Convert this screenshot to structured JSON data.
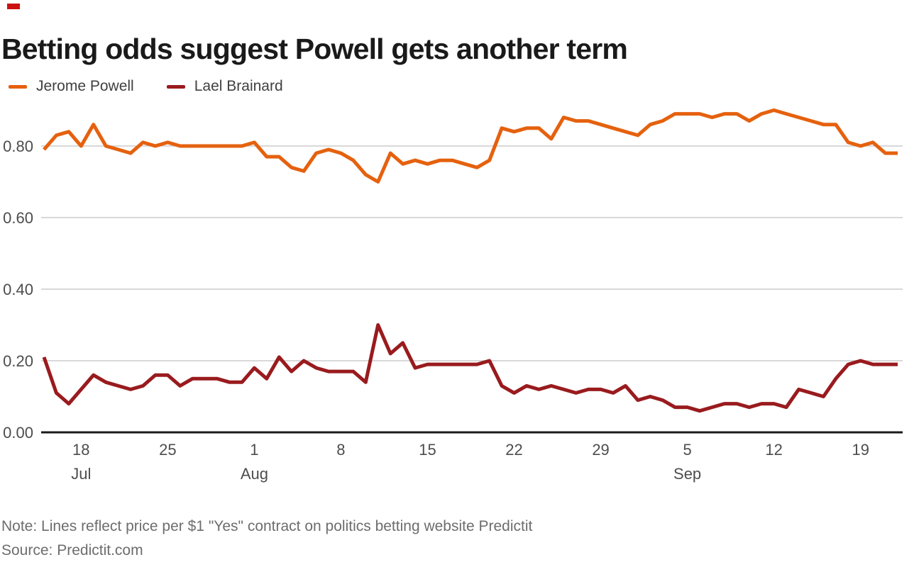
{
  "header": {
    "title": "Betting odds suggest Powell gets another term"
  },
  "legend": {
    "items": [
      {
        "label": "Jerome Powell",
        "color": "#e5610e"
      },
      {
        "label": "Lael Brainard",
        "color": "#991b1e"
      }
    ]
  },
  "footer": {
    "note": "Note: Lines reflect price per $1 \"Yes\" contract on politics betting website Predictit",
    "source": "Source: Predictit.com"
  },
  "colors": {
    "powell_orange": "#e5610e",
    "brainard_red": "#991b1e",
    "gridline": "#cccccc",
    "baseline": "#1a1a1a",
    "axis_text": "#4d4d4d",
    "logo_red": "#cc1111"
  },
  "chart_data": {
    "type": "line",
    "title": "Betting odds suggest Powell gets another term",
    "xlabel": "",
    "ylabel": "",
    "ylim": [
      0,
      0.93
    ],
    "grid": "horizontal",
    "legend_position": "top-left",
    "dates": [
      "Jul 15",
      "Jul 16",
      "Jul 17",
      "Jul 18",
      "Jul 19",
      "Jul 20",
      "Jul 21",
      "Jul 22",
      "Jul 23",
      "Jul 24",
      "Jul 25",
      "Jul 26",
      "Jul 27",
      "Jul 28",
      "Jul 29",
      "Jul 30",
      "Jul 31",
      "Aug 1",
      "Aug 2",
      "Aug 3",
      "Aug 4",
      "Aug 5",
      "Aug 6",
      "Aug 7",
      "Aug 8",
      "Aug 9",
      "Aug 10",
      "Aug 11",
      "Aug 12",
      "Aug 13",
      "Aug 14",
      "Aug 15",
      "Aug 16",
      "Aug 17",
      "Aug 18",
      "Aug 19",
      "Aug 20",
      "Aug 21",
      "Aug 22",
      "Aug 23",
      "Aug 24",
      "Aug 25",
      "Aug 26",
      "Aug 27",
      "Aug 28",
      "Aug 29",
      "Aug 30",
      "Aug 31",
      "Sep 1",
      "Sep 2",
      "Sep 3",
      "Sep 4",
      "Sep 5",
      "Sep 6",
      "Sep 7",
      "Sep 8",
      "Sep 9",
      "Sep 10",
      "Sep 11",
      "Sep 12",
      "Sep 13",
      "Sep 14",
      "Sep 15",
      "Sep 16",
      "Sep 17",
      "Sep 18",
      "Sep 19",
      "Sep 20",
      "Sep 21",
      "Sep 22"
    ],
    "series": [
      {
        "name": "Jerome Powell",
        "color": "#e5610e",
        "values": [
          0.79,
          0.83,
          0.84,
          0.8,
          0.86,
          0.8,
          0.79,
          0.78,
          0.81,
          0.8,
          0.81,
          0.8,
          0.8,
          0.8,
          0.8,
          0.8,
          0.8,
          0.81,
          0.77,
          0.77,
          0.74,
          0.73,
          0.78,
          0.79,
          0.78,
          0.76,
          0.72,
          0.7,
          0.78,
          0.75,
          0.76,
          0.75,
          0.76,
          0.76,
          0.75,
          0.74,
          0.76,
          0.85,
          0.84,
          0.85,
          0.85,
          0.82,
          0.88,
          0.87,
          0.87,
          0.86,
          0.85,
          0.84,
          0.83,
          0.86,
          0.87,
          0.89,
          0.89,
          0.89,
          0.88,
          0.89,
          0.89,
          0.87,
          0.89,
          0.9,
          0.89,
          0.88,
          0.87,
          0.86,
          0.86,
          0.81,
          0.8,
          0.81,
          0.78,
          0.78
        ]
      },
      {
        "name": "Lael Brainard",
        "color": "#991b1e",
        "values": [
          0.21,
          0.11,
          0.08,
          0.12,
          0.16,
          0.14,
          0.13,
          0.12,
          0.13,
          0.16,
          0.16,
          0.13,
          0.15,
          0.15,
          0.15,
          0.14,
          0.14,
          0.18,
          0.15,
          0.21,
          0.17,
          0.2,
          0.18,
          0.17,
          0.17,
          0.17,
          0.14,
          0.3,
          0.22,
          0.25,
          0.18,
          0.19,
          0.19,
          0.19,
          0.19,
          0.19,
          0.2,
          0.13,
          0.11,
          0.13,
          0.12,
          0.13,
          0.12,
          0.11,
          0.12,
          0.12,
          0.11,
          0.13,
          0.09,
          0.1,
          0.09,
          0.07,
          0.07,
          0.06,
          0.07,
          0.08,
          0.08,
          0.07,
          0.08,
          0.08,
          0.07,
          0.12,
          0.11,
          0.1,
          0.15,
          0.19,
          0.2,
          0.19,
          0.19,
          0.19
        ]
      }
    ],
    "y_ticks": [
      {
        "label": "0.00",
        "value": 0.0
      },
      {
        "label": "0.20",
        "value": 0.2
      },
      {
        "label": "0.40",
        "value": 0.4
      },
      {
        "label": "0.60",
        "value": 0.6
      },
      {
        "label": "0.80",
        "value": 0.8
      }
    ],
    "x_ticks": [
      {
        "label": "18",
        "month": "Jul",
        "index": 3
      },
      {
        "label": "25",
        "index": 10
      },
      {
        "label": "1",
        "month": "Aug",
        "index": 17
      },
      {
        "label": "8",
        "index": 24
      },
      {
        "label": "15",
        "index": 31
      },
      {
        "label": "22",
        "index": 38
      },
      {
        "label": "29",
        "index": 45
      },
      {
        "label": "5",
        "month": "Sep",
        "index": 52
      },
      {
        "label": "12",
        "index": 59
      },
      {
        "label": "19",
        "index": 66
      }
    ]
  }
}
